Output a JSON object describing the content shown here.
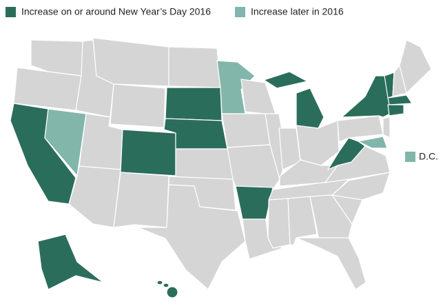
{
  "legend": [
    {
      "label": "Increase on or around New Year’s Day 2016",
      "color": "#2b6d5b"
    },
    {
      "label": "Increase later in 2016",
      "color": "#82b6ab"
    }
  ],
  "dc": {
    "label": "D.C.",
    "color": "#82b6ab"
  },
  "base_color": "#d5d5d6"
}
